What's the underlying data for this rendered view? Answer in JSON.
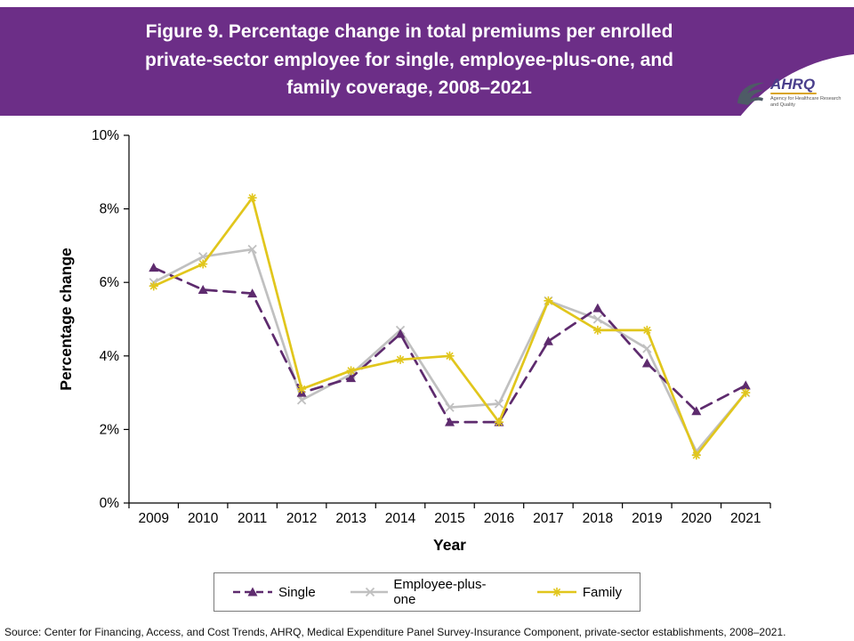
{
  "header": {
    "title_lines": [
      "Figure 9. Percentage change in total premiums per enrolled",
      "private-sector employee for single, employee-plus-one, and",
      "family coverage, 2008–2021"
    ],
    "background_color": "#6C2E87",
    "logo": {
      "name": "AHRQ",
      "tagline": "Agency for Healthcare Research and Quality"
    }
  },
  "chart_data": {
    "type": "line",
    "title": "",
    "xlabel": "Year",
    "ylabel": "Percentage change",
    "x": [
      "2009",
      "2010",
      "2011",
      "2012",
      "2013",
      "2014",
      "2015",
      "2016",
      "2017",
      "2018",
      "2019",
      "2020",
      "2021"
    ],
    "ylim": [
      0,
      10
    ],
    "yticks": [
      0,
      2,
      4,
      6,
      8,
      10
    ],
    "ytick_labels": [
      "0%",
      "2%",
      "4%",
      "6%",
      "8%",
      "10%"
    ],
    "grid": false,
    "legend_position": "bottom",
    "series": [
      {
        "name": "Single",
        "color": "#5E2B6E",
        "dash": "dashed",
        "marker": "triangle",
        "values": [
          6.4,
          5.8,
          5.7,
          3.0,
          3.4,
          4.6,
          2.2,
          2.2,
          4.4,
          5.3,
          3.8,
          2.5,
          3.2
        ]
      },
      {
        "name": "Employee-plus-one",
        "color": "#C0C0C0",
        "dash": "solid",
        "marker": "x",
        "values": [
          6.0,
          6.7,
          6.9,
          2.8,
          3.5,
          4.7,
          2.6,
          2.7,
          5.5,
          5.0,
          4.2,
          1.4,
          3.0
        ]
      },
      {
        "name": "Family",
        "color": "#E1C61C",
        "dash": "solid",
        "marker": "asterisk",
        "values": [
          5.9,
          6.5,
          8.3,
          3.1,
          3.6,
          3.9,
          4.0,
          2.2,
          5.5,
          4.7,
          4.7,
          1.3,
          3.0
        ]
      }
    ]
  },
  "footer": {
    "source": "Source: Center for Financing, Access, and Cost Trends, AHRQ, Medical Expenditure Panel Survey-Insurance Component, private-sector establishments, 2008–2021."
  }
}
